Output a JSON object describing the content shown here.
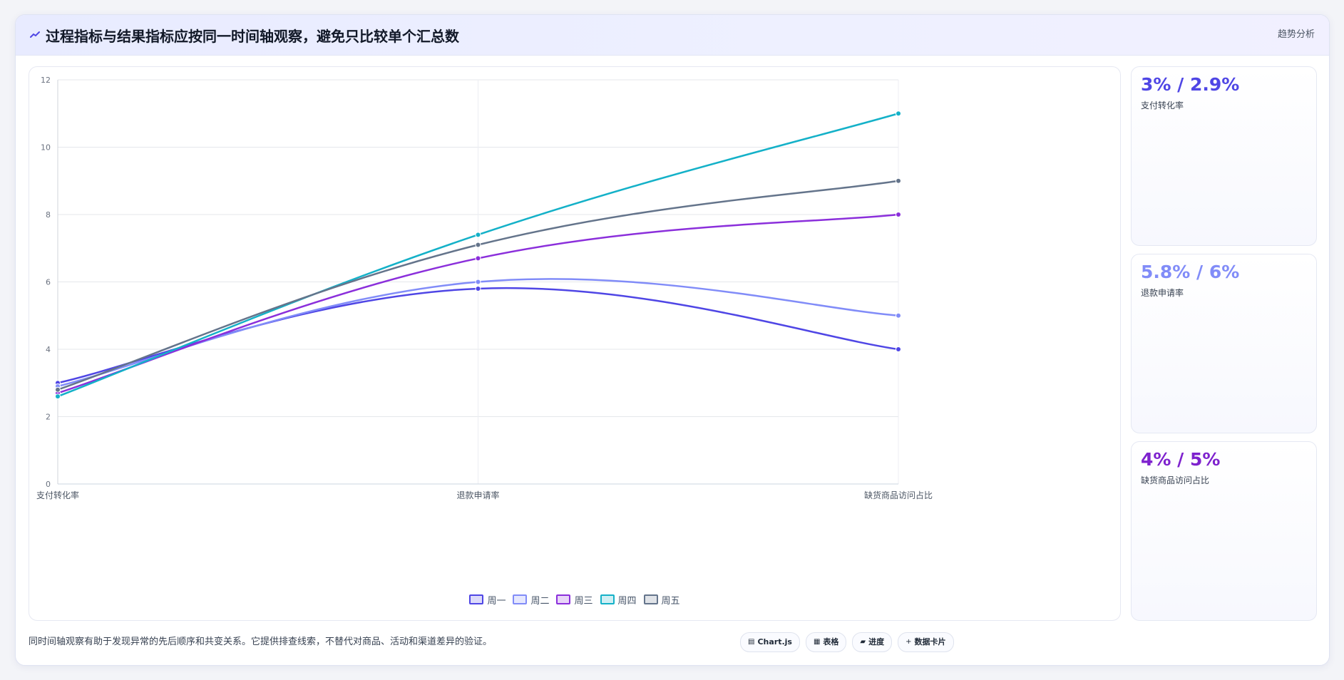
{
  "header": {
    "title": "过程指标与结果指标应按同一时间轴观察，避免只比较单个汇总数",
    "tag": "趋势分析"
  },
  "kpis": [
    {
      "value": "3% / 2.9%",
      "label": "支付转化率",
      "color": "#4f46e5"
    },
    {
      "value": "5.8% / 6%",
      "label": "退款申请率",
      "color": "#818cf8"
    },
    {
      "value": "4% / 5%",
      "label": "缺货商品访问占比",
      "color": "#7e22ce"
    }
  ],
  "footer": {
    "note": "同时间轴观察有助于发现异常的先后顺序和共变关系。它提供排查线索，不替代对商品、活动和渠道差异的验证。",
    "chips": [
      {
        "icon": "chart-icon",
        "glyph": "▤",
        "label": "Chart.js"
      },
      {
        "icon": "table-icon",
        "glyph": "▦",
        "label": "表格"
      },
      {
        "icon": "progress-icon",
        "glyph": "▰",
        "label": "进度"
      },
      {
        "icon": "card-icon",
        "glyph": "+",
        "label": "数据卡片"
      }
    ]
  },
  "chart_data": {
    "type": "line",
    "categories": [
      "支付转化率",
      "退款申请率",
      "缺货商品访问占比"
    ],
    "series": [
      {
        "name": "周一",
        "values": [
          3.0,
          5.8,
          4.0
        ],
        "color": "#4f46e5"
      },
      {
        "name": "周二",
        "values": [
          2.9,
          6.0,
          5.0
        ],
        "color": "#818cf8"
      },
      {
        "name": "周三",
        "values": [
          2.7,
          6.7,
          8.0
        ],
        "color": "#8b2fdb"
      },
      {
        "name": "周四",
        "values": [
          2.6,
          7.4,
          11.0
        ],
        "color": "#14b1c8"
      },
      {
        "name": "周五",
        "values": [
          2.8,
          7.1,
          9.0
        ],
        "color": "#64748b"
      }
    ],
    "ylim": [
      0,
      12
    ],
    "yticks": [
      0,
      2,
      4,
      6,
      8,
      10,
      12
    ],
    "grid": true,
    "legend": "bottom"
  }
}
